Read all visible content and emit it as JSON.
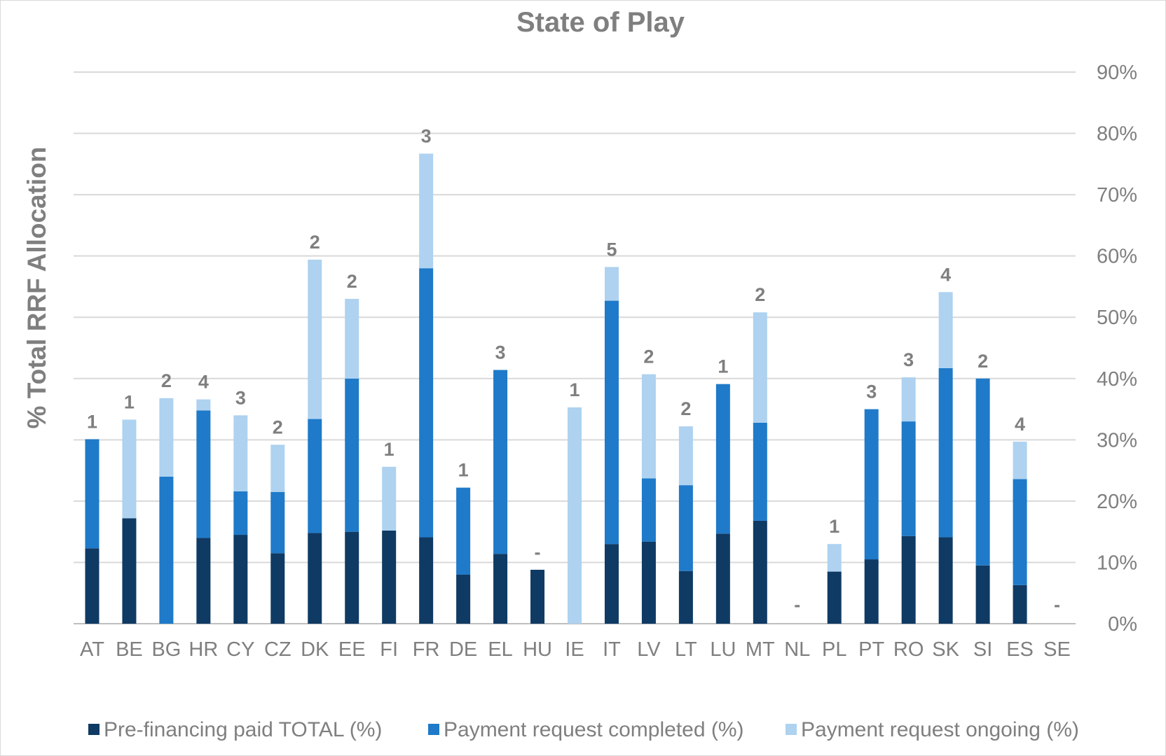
{
  "colors": {
    "pre_financing": "#0f3a64",
    "payment_completed": "#1f7ac9",
    "payment_ongoing": "#aed2f0",
    "text": "#7f7f7f",
    "grid": "#d9d9d9"
  },
  "chart_data": {
    "type": "bar",
    "stacked": true,
    "title": "State of Play",
    "xlabel": "",
    "ylabel": "% Total RRF Allocation",
    "y_axis_side": "right",
    "ylim": [
      0,
      90
    ],
    "yticks": [
      "0%",
      "10%",
      "20%",
      "30%",
      "40%",
      "50%",
      "60%",
      "70%",
      "80%",
      "90%"
    ],
    "grid": true,
    "legend_position": "bottom",
    "categories": [
      "AT",
      "BE",
      "BG",
      "HR",
      "CY",
      "CZ",
      "DK",
      "EE",
      "FI",
      "FR",
      "DE",
      "EL",
      "HU",
      "IE",
      "IT",
      "LV",
      "LT",
      "LU",
      "MT",
      "NL",
      "PL",
      "PT",
      "RO",
      "SK",
      "SI",
      "ES",
      "SE"
    ],
    "series": [
      {
        "name": "Pre-financing paid TOTAL (%)",
        "values": [
          12.3,
          17.2,
          0,
          14.0,
          14.5,
          11.5,
          14.8,
          15.0,
          15.2,
          14.1,
          8.0,
          11.4,
          8.8,
          0,
          13.0,
          13.4,
          8.6,
          14.7,
          16.8,
          0,
          8.5,
          10.5,
          14.3,
          14.1,
          9.5,
          6.3,
          0
        ]
      },
      {
        "name": "Payment request completed (%)",
        "values": [
          17.8,
          0,
          24.0,
          20.8,
          7.1,
          10.0,
          18.6,
          25.0,
          0,
          43.9,
          14.2,
          30.0,
          0,
          0,
          39.7,
          10.3,
          14.0,
          24.4,
          16.0,
          0,
          0,
          24.5,
          18.7,
          27.6,
          30.5,
          17.3,
          0
        ]
      },
      {
        "name": "Payment request ongoing (%)",
        "values": [
          0,
          16.1,
          12.8,
          1.8,
          12.4,
          7.7,
          26.0,
          13.0,
          10.4,
          18.7,
          0,
          0,
          0,
          35.3,
          5.5,
          17.0,
          9.6,
          0,
          18.0,
          0,
          4.5,
          0,
          7.2,
          12.4,
          0,
          6.1,
          0
        ]
      }
    ],
    "data_labels": [
      "1",
      "1",
      "2",
      "4",
      "3",
      "2",
      "2",
      "2",
      "1",
      "3",
      "1",
      "3",
      "-",
      "1",
      "5",
      "2",
      "2",
      "1",
      "2",
      "-",
      "1",
      "3",
      "3",
      "4",
      "2",
      "4",
      "-"
    ]
  }
}
